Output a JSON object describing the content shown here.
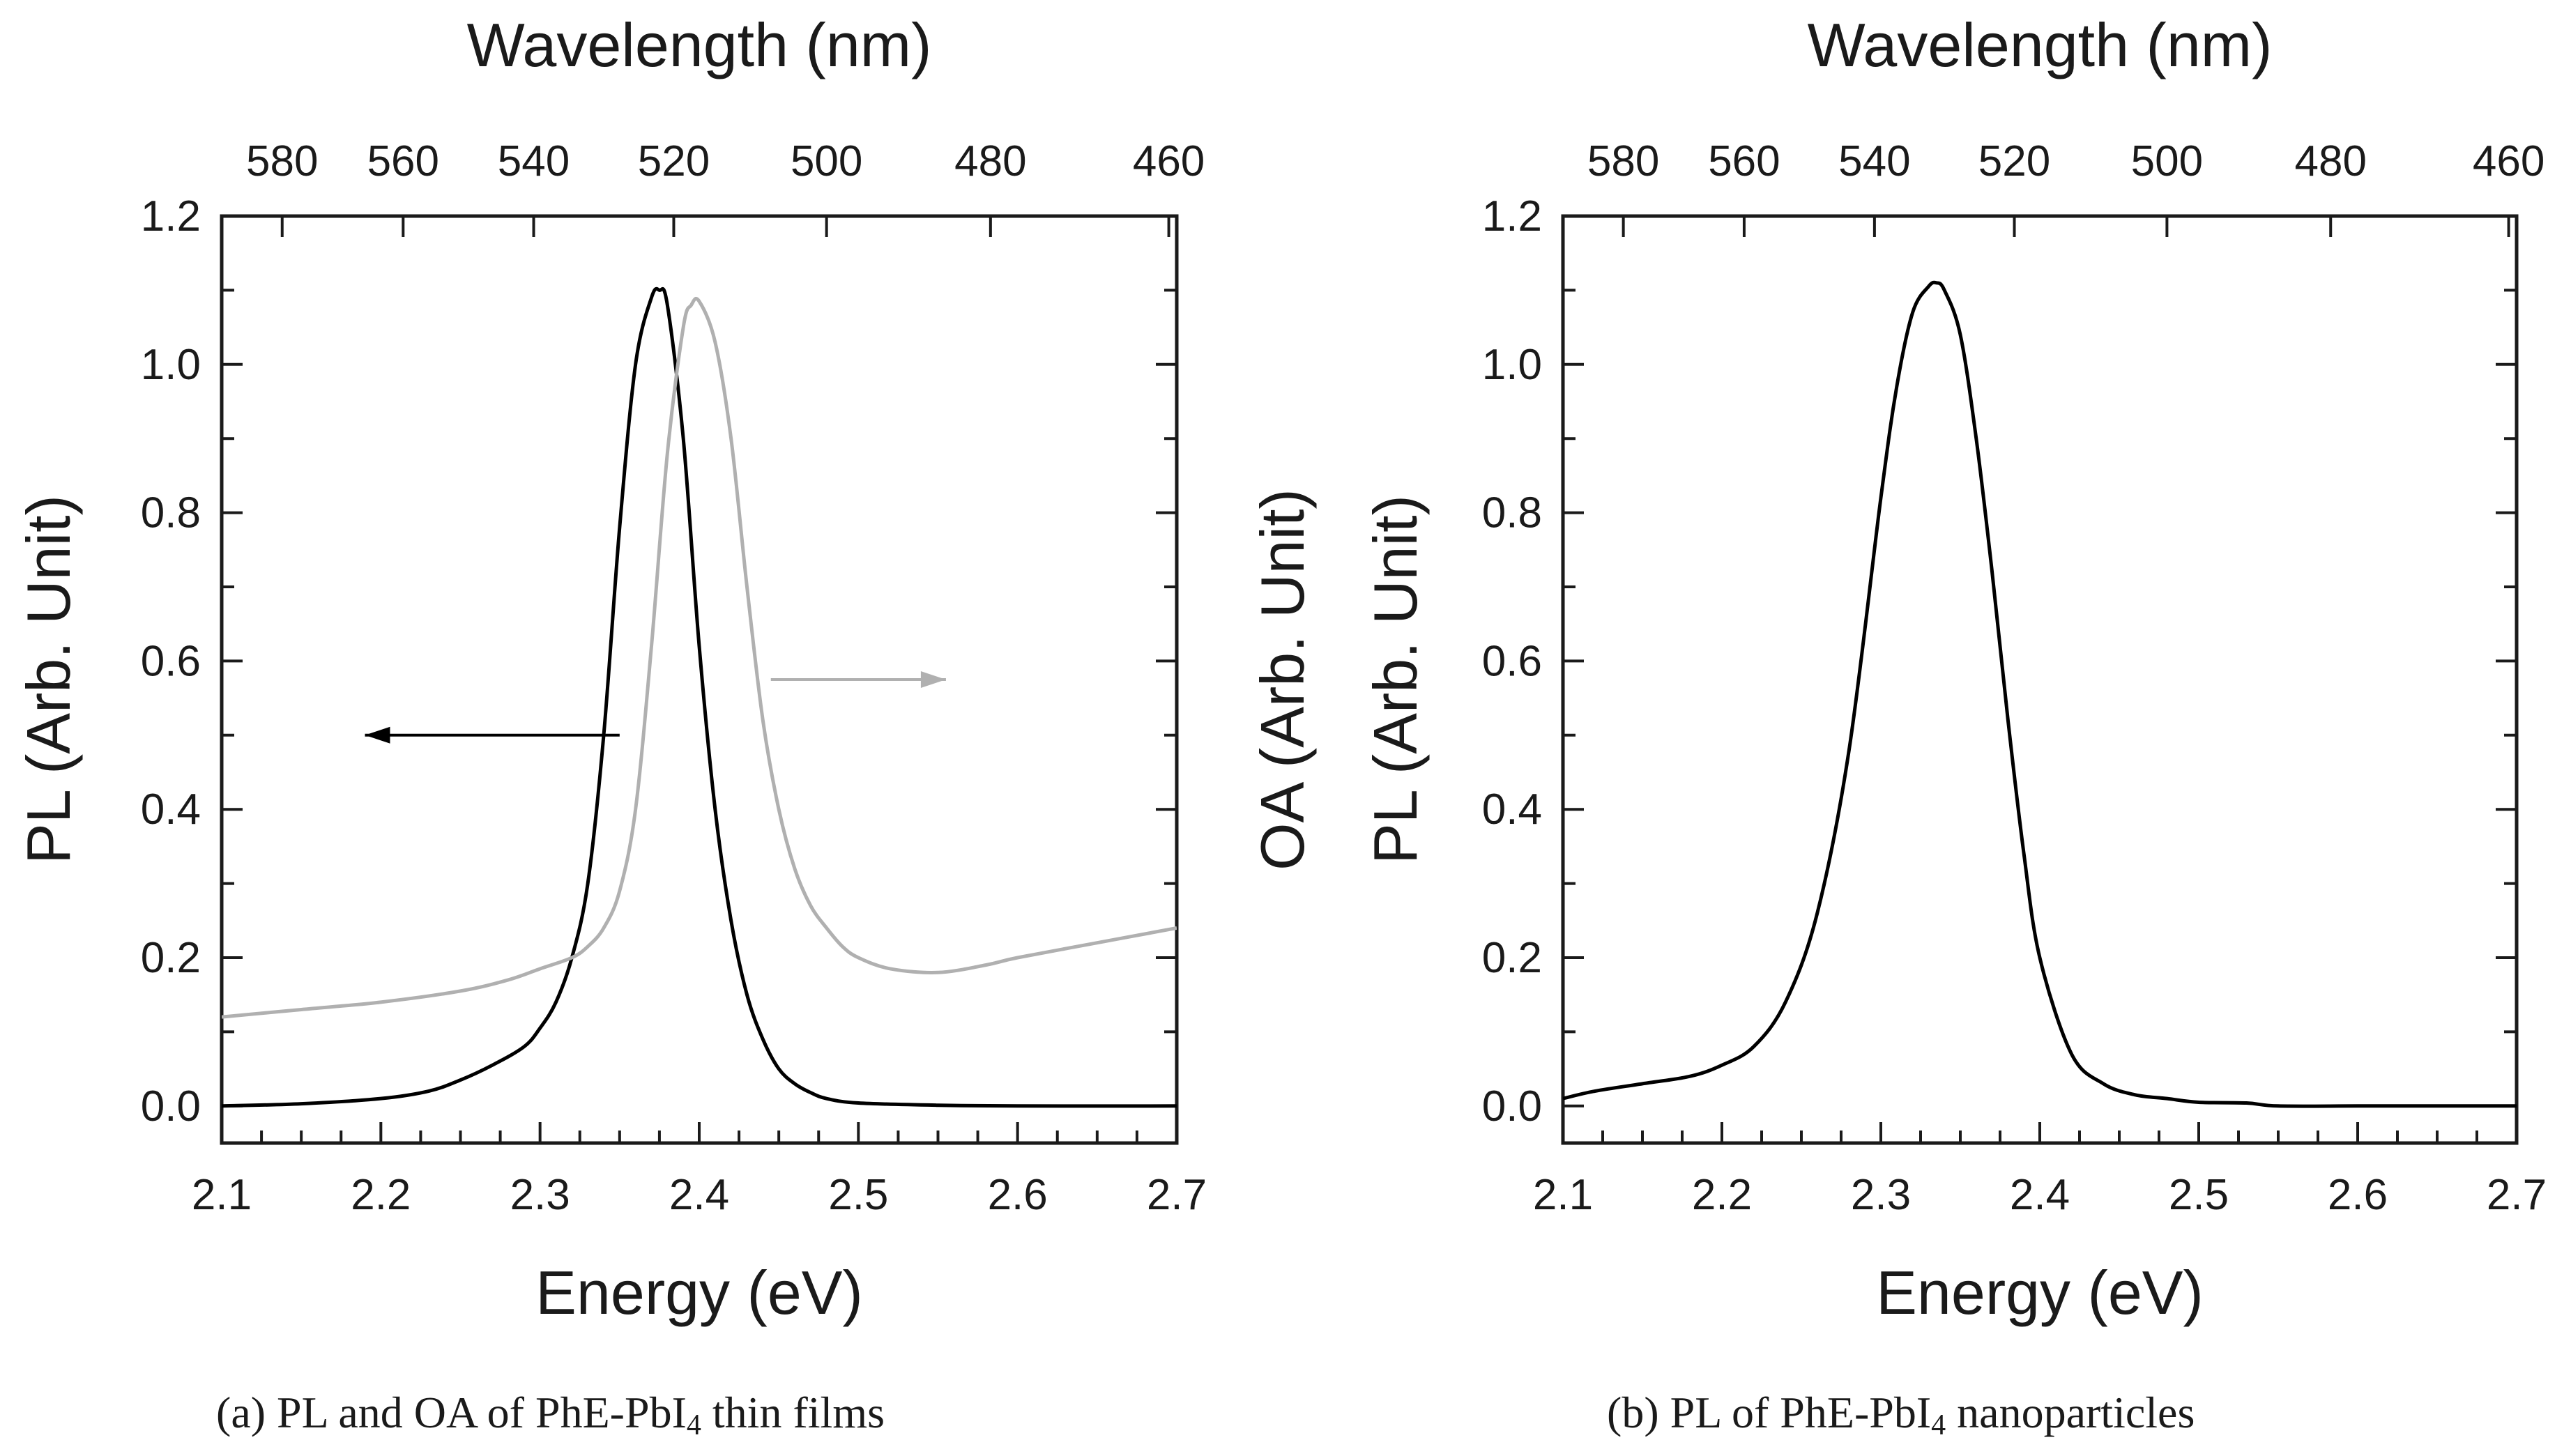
{
  "captions": {
    "a": {
      "prefix": "(a) PL and OA of PhE-PbI",
      "sub": "4",
      "suffix": " thin films"
    },
    "b": {
      "prefix": "(b) PL of PhE-PbI",
      "sub": "4",
      "suffix": " nanoparticles"
    }
  },
  "colors": {
    "pl": "#000000",
    "oa": "#b0b0b0",
    "axis": "#1a1a1a"
  },
  "chart_data": [
    {
      "id": "a",
      "type": "line",
      "xlabel": "Energy (eV)",
      "ylabel": "PL (Arb. Unit)",
      "ylabel_right": "OA (Arb. Unit)",
      "top_label": "Wavelength (nm)",
      "xlim": [
        2.1,
        2.7
      ],
      "ylim": [
        -0.05,
        1.2
      ],
      "x_ticks": [
        2.1,
        2.2,
        2.3,
        2.4,
        2.5,
        2.6,
        2.7
      ],
      "x_tick_labels": [
        "2.1",
        "2.2",
        "2.3",
        "2.4",
        "2.5",
        "2.6",
        "2.7"
      ],
      "y_ticks": [
        0.0,
        0.2,
        0.4,
        0.6,
        0.8,
        1.0,
        1.2
      ],
      "y_tick_labels": [
        "0.0",
        "0.2",
        "0.4",
        "0.6",
        "0.8",
        "1.0",
        "1.2"
      ],
      "top_tick_labels": [
        "580",
        "560",
        "540",
        "520",
        "500",
        "480",
        "460"
      ],
      "top_tick_energies": [
        2.138,
        2.214,
        2.296,
        2.384,
        2.48,
        2.583,
        2.695
      ],
      "series": [
        {
          "name": "PL",
          "color": "#000000",
          "x": [
            2.1,
            2.15,
            2.2,
            2.23,
            2.25,
            2.27,
            2.29,
            2.3,
            2.31,
            2.32,
            2.33,
            2.34,
            2.35,
            2.36,
            2.37,
            2.375,
            2.38,
            2.39,
            2.4,
            2.41,
            2.42,
            2.43,
            2.44,
            2.45,
            2.46,
            2.47,
            2.48,
            2.5,
            2.55,
            2.6,
            2.7
          ],
          "y": [
            0.0,
            0.003,
            0.01,
            0.02,
            0.035,
            0.055,
            0.08,
            0.105,
            0.14,
            0.2,
            0.3,
            0.5,
            0.78,
            1.0,
            1.09,
            1.1,
            1.08,
            0.9,
            0.62,
            0.4,
            0.25,
            0.15,
            0.09,
            0.05,
            0.03,
            0.018,
            0.01,
            0.004,
            0.001,
            0.0,
            0.0
          ]
        },
        {
          "name": "OA",
          "color": "#b0b0b0",
          "x": [
            2.1,
            2.15,
            2.2,
            2.25,
            2.28,
            2.3,
            2.32,
            2.33,
            2.34,
            2.35,
            2.36,
            2.37,
            2.38,
            2.39,
            2.395,
            2.4,
            2.41,
            2.42,
            2.43,
            2.44,
            2.45,
            2.46,
            2.47,
            2.48,
            2.49,
            2.5,
            2.52,
            2.55,
            2.58,
            2.6,
            2.65,
            2.7
          ],
          "y": [
            0.12,
            0.13,
            0.14,
            0.155,
            0.17,
            0.185,
            0.2,
            0.215,
            0.24,
            0.29,
            0.4,
            0.62,
            0.88,
            1.05,
            1.08,
            1.085,
            1.03,
            0.9,
            0.7,
            0.52,
            0.4,
            0.32,
            0.27,
            0.24,
            0.215,
            0.2,
            0.185,
            0.18,
            0.19,
            0.2,
            0.22,
            0.24
          ]
        }
      ],
      "annotations": [
        {
          "type": "arrow",
          "from": [
            2.35,
            0.5
          ],
          "to": [
            2.19,
            0.5
          ],
          "color": "#000000",
          "meaning": "PL series uses left axis"
        },
        {
          "type": "arrow",
          "from": [
            2.445,
            0.575
          ],
          "to": [
            2.555,
            0.575
          ],
          "color": "#b0b0b0",
          "meaning": "OA series uses right axis"
        }
      ]
    },
    {
      "id": "b",
      "type": "line",
      "xlabel": "Energy (eV)",
      "ylabel": "PL (Arb. Unit)",
      "top_label": "Wavelength (nm)",
      "xlim": [
        2.1,
        2.7
      ],
      "ylim": [
        -0.05,
        1.2
      ],
      "x_ticks": [
        2.1,
        2.2,
        2.3,
        2.4,
        2.5,
        2.6,
        2.7
      ],
      "x_tick_labels": [
        "2.1",
        "2.2",
        "2.3",
        "2.4",
        "2.5",
        "2.6",
        "2.7"
      ],
      "y_ticks": [
        0.0,
        0.2,
        0.4,
        0.6,
        0.8,
        1.0,
        1.2
      ],
      "y_tick_labels": [
        "0.0",
        "0.2",
        "0.4",
        "0.6",
        "0.8",
        "1.0",
        "1.2"
      ],
      "top_tick_labels": [
        "580",
        "560",
        "540",
        "520",
        "500",
        "480",
        "460"
      ],
      "top_tick_energies": [
        2.138,
        2.214,
        2.296,
        2.384,
        2.48,
        2.583,
        2.695
      ],
      "series": [
        {
          "name": "PL",
          "color": "#000000",
          "x": [
            2.1,
            2.12,
            2.15,
            2.18,
            2.2,
            2.22,
            2.24,
            2.26,
            2.28,
            2.3,
            2.31,
            2.32,
            2.33,
            2.335,
            2.34,
            2.35,
            2.36,
            2.37,
            2.38,
            2.39,
            2.4,
            2.42,
            2.44,
            2.46,
            2.48,
            2.5,
            2.53,
            2.55,
            2.6,
            2.65,
            2.7
          ],
          "y": [
            0.01,
            0.02,
            0.03,
            0.04,
            0.055,
            0.08,
            0.14,
            0.26,
            0.48,
            0.82,
            0.97,
            1.07,
            1.105,
            1.11,
            1.1,
            1.04,
            0.9,
            0.72,
            0.52,
            0.34,
            0.2,
            0.07,
            0.03,
            0.015,
            0.01,
            0.005,
            0.004,
            0.0,
            0.0,
            0.0,
            0.0
          ]
        }
      ],
      "annotations": []
    }
  ]
}
